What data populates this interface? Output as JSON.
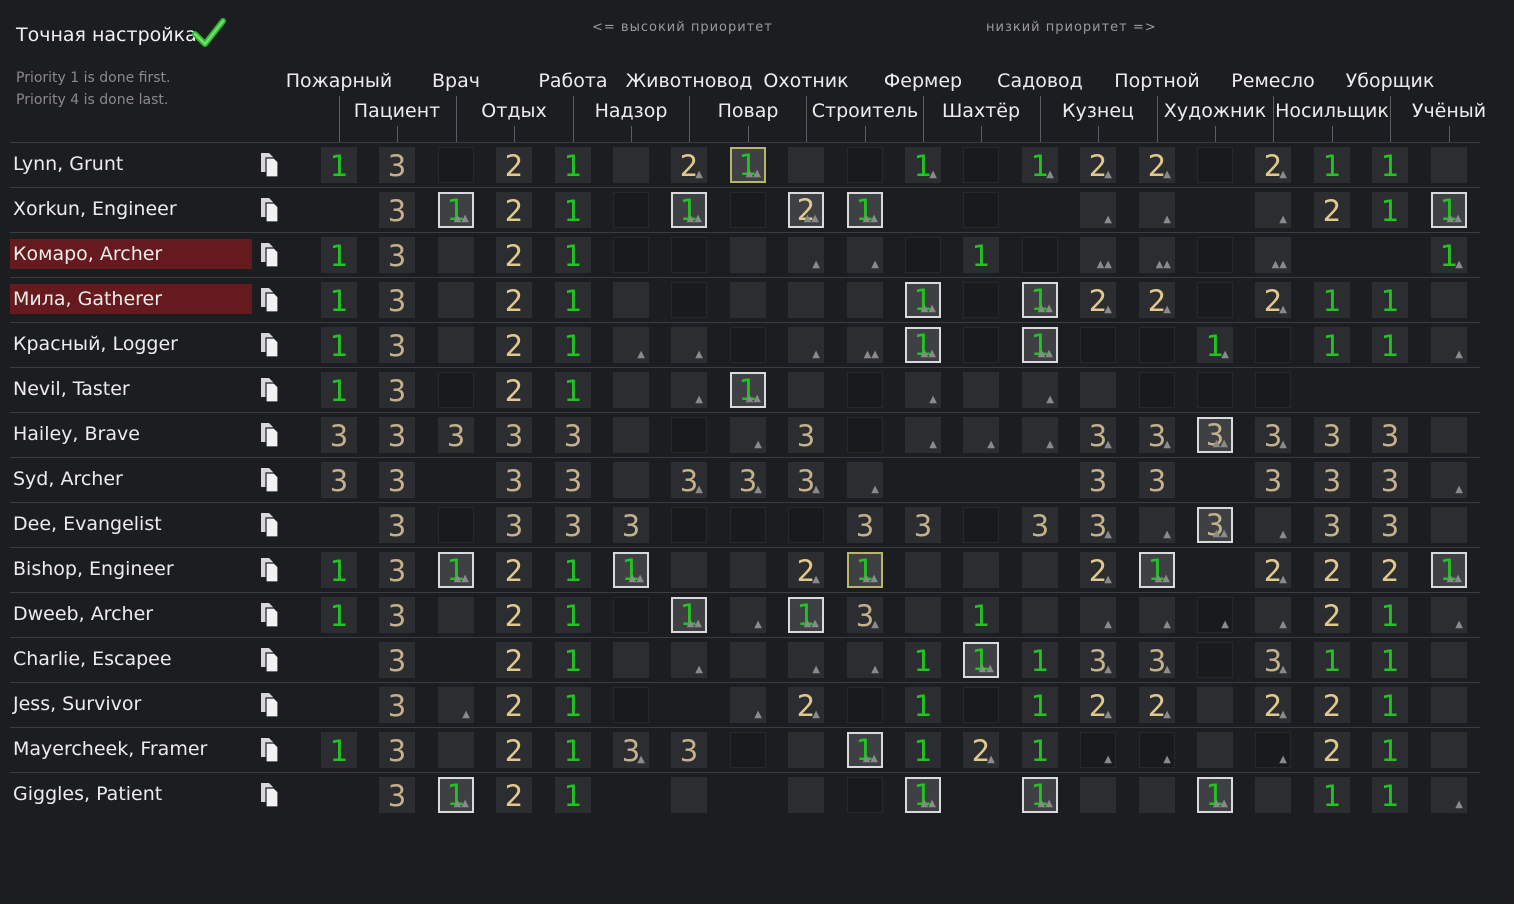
{
  "header": {
    "title": "Точная настройка",
    "check_icon": "checkmark-icon",
    "high_priority": "<= высокий приоритет",
    "low_priority": "низкий приоритет =>",
    "note_line1": "Priority 1 is done first.",
    "note_line2": "Priority 4 is done last."
  },
  "colors": {
    "p1": "#22c422",
    "p2": "#e1c98e",
    "p3": "#c4b08b",
    "alert_row": "#651a1d"
  },
  "columns": [
    "Пожарный",
    "Пациент",
    "Врач",
    "Отдых",
    "Работа",
    "Надзор",
    "Животновод",
    "Повар",
    "Охотник",
    "Строитель",
    "Фермер",
    "Шахтёр",
    "Садовод",
    "Кузнец",
    "Портной",
    "Художник",
    "Ремесло",
    "Носильщик",
    "Уборщик",
    "Учёный"
  ],
  "pawns": [
    {
      "name": "Lynn, Grunt",
      "alert": false,
      "cells": [
        "1",
        "3",
        "d",
        "2",
        "1",
        "s",
        "2p",
        "1y",
        "s",
        "d",
        "1p",
        "d",
        "1p",
        "2p",
        "2p",
        "d",
        "2p",
        "1",
        "1",
        "s"
      ]
    },
    {
      "name": "Xorkun, Engineer",
      "alert": false,
      "cells": [
        "",
        "3",
        "1P",
        "2",
        "1",
        "d",
        "1P",
        "d",
        "2P",
        "1P",
        "",
        "d",
        "",
        "sf",
        "sf",
        "",
        "sf",
        "2",
        "1",
        "1P"
      ]
    },
    {
      "name": "Комаро, Archer",
      "alert": true,
      "cells": [
        "1",
        "3",
        "s",
        "2",
        "1",
        "d",
        "d",
        "s",
        "sf",
        "sf",
        "d",
        "1",
        "d",
        "sff",
        "sff",
        "d",
        "sff",
        "",
        "",
        "1p"
      ]
    },
    {
      "name": "Мила, Gatherer",
      "alert": true,
      "cells": [
        "1",
        "3",
        "s",
        "2",
        "1",
        "s",
        "d",
        "s",
        "s",
        "s",
        "1P",
        "d",
        "1P",
        "2p",
        "2p",
        "d",
        "2p",
        "1",
        "1",
        "s"
      ]
    },
    {
      "name": "Красный, Logger",
      "alert": false,
      "cells": [
        "1",
        "3",
        "s",
        "2",
        "1",
        "sf",
        "sf",
        "d",
        "sf",
        "sff",
        "1P",
        "d",
        "1P",
        "d",
        "d",
        "1p",
        "d",
        "1",
        "1",
        "sf"
      ]
    },
    {
      "name": "Nevil, Taster",
      "alert": false,
      "cells": [
        "1",
        "3",
        "d",
        "2",
        "1",
        "s",
        "sf",
        "1P",
        "s",
        "d",
        "sf",
        "s",
        "sf",
        "s",
        "d",
        "d",
        "d",
        "",
        "",
        ""
      ]
    },
    {
      "name": "Hailey, Brave",
      "alert": false,
      "cells": [
        "3",
        "3",
        "3",
        "3",
        "3",
        "s",
        "d",
        "sf",
        "3",
        "d",
        "sf",
        "sf",
        "sf",
        "3p",
        "3p",
        "3P",
        "3p",
        "3",
        "3",
        "s"
      ]
    },
    {
      "name": "Syd, Archer",
      "alert": false,
      "cells": [
        "3",
        "3",
        "",
        "3",
        "3",
        "s",
        "3p",
        "3p",
        "3p",
        "sf",
        "",
        "",
        "",
        "3",
        "3",
        "",
        "3",
        "3",
        "3",
        "sf"
      ]
    },
    {
      "name": "Dee, Evangelist",
      "alert": false,
      "cells": [
        "",
        "3",
        "d",
        "3",
        "3",
        "3",
        "d",
        "d",
        "d",
        "3",
        "3",
        "d",
        "3",
        "3p",
        "sf",
        "3P",
        "sf",
        "3",
        "3",
        "s"
      ]
    },
    {
      "name": "Bishop, Engineer",
      "alert": false,
      "cells": [
        "1",
        "3",
        "1P",
        "2",
        "1",
        "1P",
        "s",
        "s",
        "2p",
        "1y",
        "s",
        "s",
        "s",
        "2p",
        "1P",
        "",
        "2p",
        "2",
        "2",
        "1P"
      ]
    },
    {
      "name": "Dweeb, Archer",
      "alert": false,
      "cells": [
        "1",
        "3",
        "s",
        "2",
        "1",
        "d",
        "1P",
        "sf",
        "1P",
        "3p",
        "s",
        "1",
        "s",
        "sf",
        "sf",
        "df",
        "sf",
        "2",
        "1",
        "sf"
      ]
    },
    {
      "name": "Charlie, Escapee",
      "alert": false,
      "cells": [
        "",
        "3",
        "",
        "2",
        "1",
        "s",
        "sf",
        "s",
        "sf",
        "sf",
        "1",
        "1P",
        "1",
        "3p",
        "3p",
        "d",
        "3p",
        "1",
        "1",
        "s"
      ]
    },
    {
      "name": "Jess, Survivor",
      "alert": false,
      "cells": [
        "",
        "3",
        "sf",
        "2",
        "1",
        "d",
        "",
        "sf",
        "2p",
        "d",
        "1",
        "d",
        "1",
        "2p",
        "2p",
        "s",
        "2p",
        "2",
        "1",
        "s"
      ]
    },
    {
      "name": "Mayercheek, Framer",
      "alert": false,
      "cells": [
        "1",
        "3",
        "s",
        "2",
        "1",
        "3p",
        "3",
        "d",
        "s",
        "1P",
        "1",
        "2p",
        "1",
        "df",
        "df",
        "s",
        "df",
        "2",
        "1",
        "s"
      ]
    },
    {
      "name": "Giggles, Patient",
      "alert": false,
      "cells": [
        "",
        "3",
        "1P",
        "2",
        "1",
        "",
        "s",
        "",
        "s",
        "d",
        "1P",
        "",
        "1P",
        "s",
        "s",
        "1P",
        "s",
        "1",
        "1",
        "sf"
      ]
    }
  ]
}
